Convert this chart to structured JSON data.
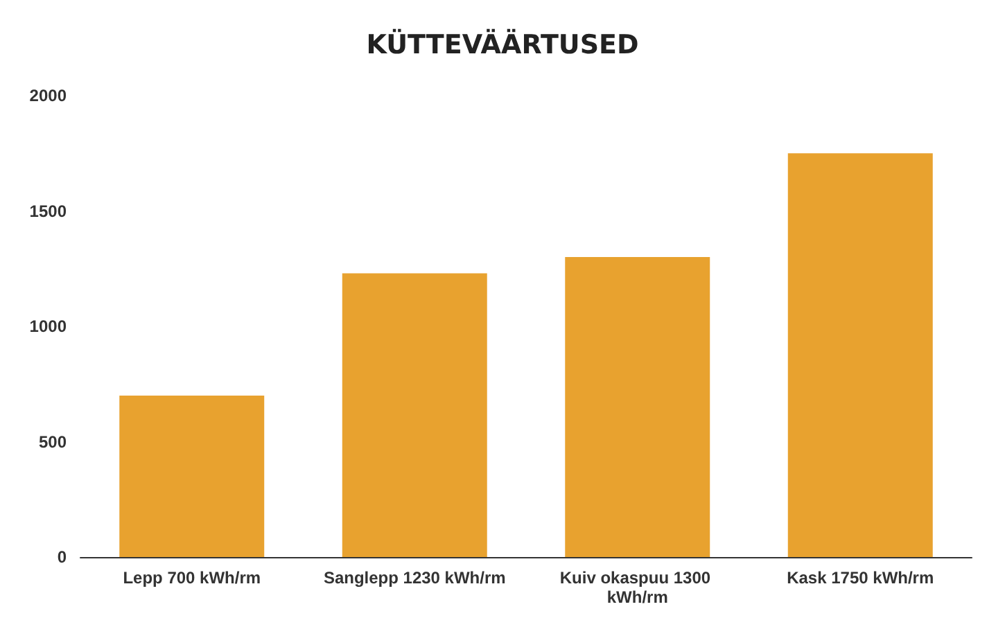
{
  "chart_data": {
    "type": "bar",
    "title": "KÜTTEVÄÄRTUSED",
    "categories": [
      "Lepp 700 kWh/rm",
      "Sanglepp 1230 kWh/rm",
      "Kuiv okaspuu 1300 kWh/rm",
      "Kask 1750 kWh/rm"
    ],
    "values": [
      700,
      1230,
      1300,
      1750
    ],
    "color": "#e8a22f",
    "ylim": [
      0,
      2000
    ],
    "yticks": [
      0,
      500,
      1000,
      1500,
      2000
    ],
    "grid": false
  }
}
